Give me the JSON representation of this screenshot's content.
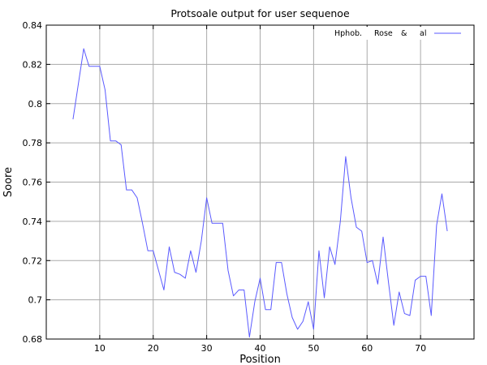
{
  "chart_data": {
    "type": "line",
    "title": "Protsoale output for user sequenoe",
    "xlabel": "Position",
    "ylabel": "Soore",
    "xlim": [
      0,
      80
    ],
    "ylim": [
      0.68,
      0.84
    ],
    "xticks": [
      10,
      20,
      30,
      40,
      50,
      60,
      70
    ],
    "yticks": [
      0.68,
      0.7,
      0.72,
      0.74,
      0.76,
      0.78,
      0.8,
      0.82,
      0.84
    ],
    "xtick_labels": [
      "10",
      "20",
      "30",
      "40",
      "50",
      "60",
      "70"
    ],
    "ytick_labels": [
      "0.68",
      "0.7",
      "0.72",
      "0.74",
      "0.76",
      "0.78",
      "0.8",
      "0.82",
      "0.84"
    ],
    "grid": true,
    "legend": {
      "position": "top-right",
      "entries": [
        "Hphob.",
        "Rose",
        "&",
        "al"
      ]
    },
    "series": [
      {
        "name": "Hphob. Rose & al",
        "color": "#5a5aff",
        "x": [
          5,
          6,
          7,
          8,
          9,
          10,
          11,
          12,
          13,
          14,
          15,
          16,
          17,
          18,
          19,
          20,
          21,
          22,
          23,
          24,
          25,
          26,
          27,
          28,
          29,
          30,
          31,
          32,
          33,
          34,
          35,
          36,
          37,
          38,
          39,
          40,
          41,
          42,
          43,
          44,
          45,
          46,
          47,
          48,
          49,
          50,
          51,
          52,
          53,
          54,
          55,
          56,
          57,
          58,
          59,
          60,
          61,
          62,
          63,
          64,
          65,
          66,
          67,
          68,
          69,
          70,
          71,
          72,
          73,
          74,
          75
        ],
        "y": [
          0.792,
          0.81,
          0.828,
          0.819,
          0.819,
          0.819,
          0.807,
          0.781,
          0.781,
          0.779,
          0.756,
          0.756,
          0.752,
          0.739,
          0.725,
          0.725,
          0.715,
          0.705,
          0.727,
          0.714,
          0.713,
          0.711,
          0.725,
          0.714,
          0.73,
          0.752,
          0.739,
          0.739,
          0.739,
          0.715,
          0.702,
          0.705,
          0.705,
          0.681,
          0.699,
          0.711,
          0.695,
          0.695,
          0.719,
          0.719,
          0.703,
          0.691,
          0.685,
          0.689,
          0.699,
          0.685,
          0.725,
          0.701,
          0.727,
          0.718,
          0.74,
          0.773,
          0.752,
          0.737,
          0.735,
          0.719,
          0.72,
          0.708,
          0.732,
          0.709,
          0.687,
          0.704,
          0.693,
          0.692,
          0.71,
          0.712,
          0.712,
          0.692,
          0.738,
          0.754,
          0.735
        ]
      }
    ]
  }
}
